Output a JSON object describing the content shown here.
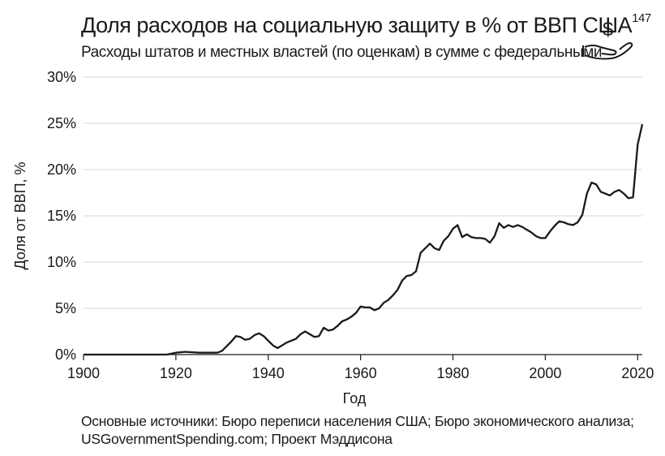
{
  "title": "Доля расходов на социальную защиту в % от ВВП США",
  "title_note": "147",
  "subtitle": "Расходы штатов и местных властей (по оценкам) в сумме с федеральными",
  "icon": "hand-dollar-icon",
  "source_lines": [
    "Основные источники: Бюро переписи населения США; Бюро экономического анализа;",
    "USGovernmentSpending.com; Проект Мэддисона"
  ],
  "chart_data": {
    "type": "line",
    "title": "Доля расходов на социальную защиту в % от ВВП США",
    "subtitle": "Расходы штатов и местных властей (по оценкам) в сумме с федеральными",
    "xlabel": "Год",
    "ylabel": "Доля от ВВП, %",
    "xlim": [
      1900,
      2021
    ],
    "ylim": [
      0,
      30
    ],
    "x_ticks": [
      1900,
      1920,
      1940,
      1960,
      1980,
      2000,
      2020
    ],
    "y_ticks": [
      0,
      5,
      10,
      15,
      20,
      25,
      30
    ],
    "y_tick_labels": [
      "0%",
      "5%",
      "10%",
      "15%",
      "20%",
      "25%",
      "30%"
    ],
    "grid": "horizontal",
    "line_color": "#1a1a1a",
    "series": [
      {
        "x": [
          1900,
          1905,
          1910,
          1915,
          1918,
          1920,
          1922,
          1925,
          1928,
          1929,
          1930,
          1931,
          1932,
          1933,
          1934,
          1935,
          1936,
          1937,
          1938,
          1939,
          1940,
          1941,
          1942,
          1943,
          1944,
          1945,
          1946,
          1947,
          1948,
          1949,
          1950,
          1951,
          1952,
          1953,
          1954,
          1955,
          1956,
          1957,
          1958,
          1959,
          1960,
          1961,
          1962,
          1963,
          1964,
          1965,
          1966,
          1967,
          1968,
          1969,
          1970,
          1971,
          1972,
          1973,
          1974,
          1975,
          1976,
          1977,
          1978,
          1979,
          1980,
          1981,
          1982,
          1983,
          1984,
          1985,
          1986,
          1987,
          1988,
          1989,
          1990,
          1991,
          1992,
          1993,
          1994,
          1995,
          1996,
          1997,
          1998,
          1999,
          2000,
          2001,
          2002,
          2003,
          2004,
          2005,
          2006,
          2007,
          2008,
          2009,
          2010,
          2011,
          2012,
          2013,
          2014,
          2015,
          2016,
          2017,
          2018,
          2019,
          2020,
          2021
        ],
        "values": [
          0,
          0,
          0,
          0,
          0,
          0.2,
          0.3,
          0.2,
          0.2,
          0.2,
          0.4,
          0.9,
          1.4,
          2.0,
          1.9,
          1.6,
          1.7,
          2.1,
          2.3,
          2.0,
          1.5,
          1.0,
          0.7,
          1.0,
          1.3,
          1.5,
          1.7,
          2.2,
          2.5,
          2.2,
          1.9,
          2.0,
          2.9,
          2.6,
          2.7,
          3.1,
          3.6,
          3.8,
          4.1,
          4.5,
          5.2,
          5.1,
          5.1,
          4.8,
          5.0,
          5.6,
          5.9,
          6.4,
          7.0,
          8.0,
          8.5,
          8.6,
          9.0,
          11.0,
          11.5,
          12.0,
          11.5,
          11.3,
          12.3,
          12.8,
          13.6,
          14.0,
          12.7,
          13.0,
          12.7,
          12.6,
          12.6,
          12.5,
          12.1,
          12.8,
          14.2,
          13.7,
          14.0,
          13.8,
          14.0,
          13.8,
          13.5,
          13.2,
          12.8,
          12.6,
          12.6,
          13.3,
          13.9,
          14.4,
          14.3,
          14.1,
          14.0,
          14.3,
          15.1,
          17.4,
          18.6,
          18.4,
          17.6,
          17.4,
          17.2,
          17.6,
          17.8,
          17.4,
          16.9,
          17.0,
          22.7,
          24.9
        ]
      }
    ]
  }
}
